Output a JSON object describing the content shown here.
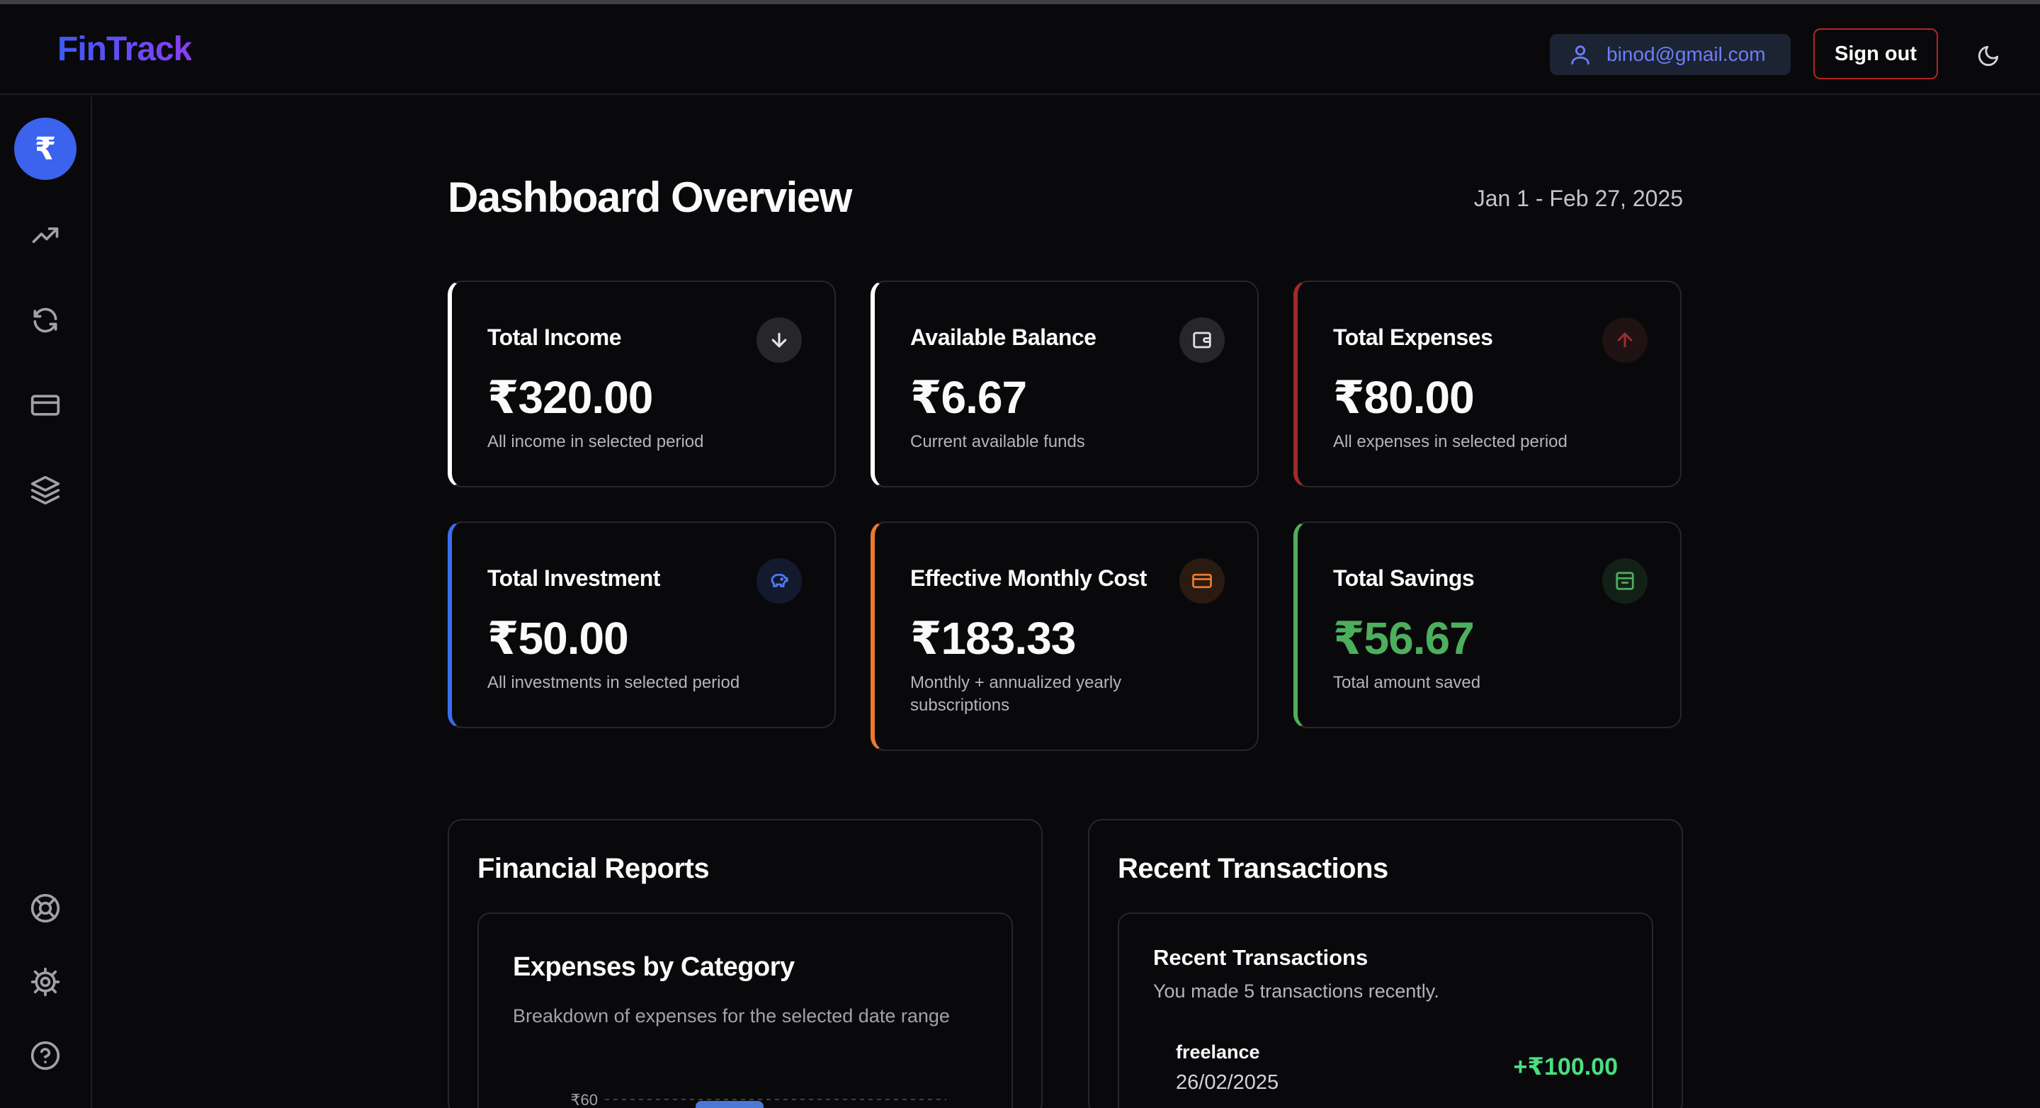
{
  "header": {
    "logo": "FinTrack",
    "user_email": "binod@gmail.com",
    "signout_label": "Sign out"
  },
  "sidebar": {
    "items": [
      {
        "icon": "rupee-icon",
        "active": true
      },
      {
        "icon": "trending-up-icon"
      },
      {
        "icon": "refresh-icon"
      },
      {
        "icon": "credit-card-icon"
      },
      {
        "icon": "layers-icon"
      },
      {
        "icon": "lifebuoy-icon"
      },
      {
        "icon": "gear-icon"
      },
      {
        "icon": "help-circle-icon"
      }
    ],
    "active_symbol": "₹"
  },
  "main": {
    "title": "Dashboard Overview",
    "date_range": "Jan 1 - Feb 27, 2025"
  },
  "cards": [
    {
      "title": "Total Income",
      "value": "₹320.00",
      "sub": "All income in selected period",
      "accent": "#ffffff",
      "icon": "arrow-down-icon"
    },
    {
      "title": "Available Balance",
      "value": "₹6.67",
      "sub": "Current available funds",
      "accent": "#ffffff",
      "icon": "wallet-icon"
    },
    {
      "title": "Total Expenses",
      "value": "₹80.00",
      "sub": "All expenses in selected period",
      "accent": "#a12a2a",
      "icon": "arrow-up-icon"
    },
    {
      "title": "Total Investment",
      "value": "₹50.00",
      "sub": "All investments in selected period",
      "accent": "#3b6cf0",
      "icon": "piggy-bank-icon"
    },
    {
      "title": "Effective Monthly Cost",
      "value": "₹183.33",
      "sub": "Monthly + annualized yearly subscriptions",
      "accent": "#ea7a2e",
      "icon": "credit-card-icon"
    },
    {
      "title": "Total Savings",
      "value": "₹56.67",
      "sub": "Total amount saved",
      "accent": "#4caf5c",
      "icon": "archive-icon"
    }
  ],
  "reports": {
    "title": "Financial Reports",
    "chart_title": "Expenses by Category",
    "chart_desc": "Breakdown of expenses for the selected date range",
    "chart_data": {
      "type": "bar",
      "title": "Expenses by Category",
      "y_tick_labels": [
        "₹60"
      ]
    }
  },
  "transactions": {
    "title": "Recent Transactions",
    "card_title": "Recent Transactions",
    "card_sub": "You made 5 transactions recently.",
    "items": [
      {
        "name": "freelance",
        "date": "26/02/2025",
        "amount": "+₹100.00"
      }
    ]
  }
}
